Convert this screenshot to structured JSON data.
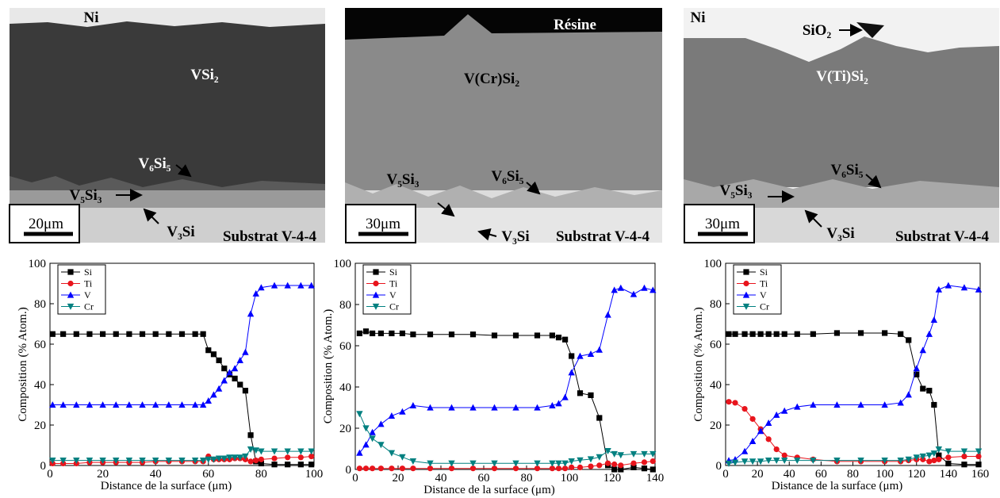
{
  "micrographs": [
    {
      "labels": [
        "Ni",
        "VSi₂",
        "V₆Si₅",
        "V₅Si₃",
        "V₃Si",
        "Substrat V-4-4"
      ],
      "scale_bar": "20μm"
    },
    {
      "labels": [
        "Résine",
        "V(Cr)Si₂",
        "V₅Si₃",
        "V₆Si₅",
        "V₃Si",
        "Substrat V-4-4"
      ],
      "scale_bar": "30μm"
    },
    {
      "labels": [
        "Ni",
        "SiO₂",
        "V(Ti)Si₂",
        "V₆Si₅",
        "V₅Si₃",
        "V₃Si",
        "Substrat V-4-4"
      ],
      "scale_bar": "30μm"
    }
  ],
  "chart_data": [
    {
      "type": "line",
      "x_label": "Distance de la surface (μm)",
      "y_label": "Composition (% Atom.)",
      "x": [
        1,
        5,
        10,
        15,
        20,
        25,
        30,
        35,
        40,
        45,
        50,
        55,
        58,
        60,
        62,
        64,
        66,
        68,
        70,
        72,
        74,
        76,
        78,
        80,
        85,
        90,
        95,
        99
      ],
      "series": [
        {
          "name": "Si",
          "color": "#000000",
          "marker": "square",
          "values": [
            65,
            65,
            65,
            65,
            65,
            65,
            65,
            65,
            65,
            65,
            65,
            65,
            65,
            57,
            55,
            52,
            48,
            45,
            43,
            40,
            37,
            15,
            2,
            1,
            0.5,
            0.5,
            0.5,
            0.5
          ]
        },
        {
          "name": "Ti",
          "color": "#e8141c",
          "marker": "circle",
          "values": [
            1,
            1,
            1,
            1.5,
            1.5,
            1.5,
            1.5,
            1.5,
            2,
            2,
            2,
            2,
            2,
            4.5,
            3,
            3,
            3,
            3,
            3.5,
            3.5,
            3,
            2,
            2.5,
            3,
            3.5,
            4,
            4,
            4.5
          ]
        },
        {
          "name": "V",
          "color": "#0000ff",
          "marker": "triangle-up",
          "values": [
            30,
            30,
            30,
            30,
            30,
            30,
            30,
            30,
            30,
            30,
            30,
            30,
            30,
            32,
            35,
            38,
            42,
            46,
            48,
            52,
            56,
            75,
            85,
            88,
            89,
            89,
            89,
            89
          ]
        },
        {
          "name": "Cr",
          "color": "#008080",
          "marker": "triangle-down",
          "values": [
            2.5,
            2.5,
            2.5,
            2.5,
            2.5,
            2.5,
            2.5,
            2.5,
            2.5,
            2.5,
            2.5,
            2.5,
            2.5,
            3,
            3,
            3.5,
            3.5,
            4,
            4,
            4,
            4.5,
            8,
            7.5,
            7,
            7,
            7,
            7,
            7
          ]
        }
      ],
      "xlim": [
        0,
        100
      ],
      "xticks": [
        0,
        20,
        40,
        60,
        80,
        100
      ],
      "ylim": [
        0,
        100
      ],
      "yticks": [
        0,
        20,
        40,
        60,
        80,
        100
      ],
      "legend": "upper left"
    },
    {
      "type": "line",
      "x_label": "Distance de la surface (μm)",
      "y_label": "Composition (% Atom.)",
      "x": [
        2,
        5,
        8,
        12,
        17,
        22,
        27,
        35,
        45,
        55,
        65,
        75,
        85,
        92,
        95,
        98,
        101,
        105,
        110,
        114,
        118,
        121,
        124,
        130,
        135,
        139
      ],
      "series": [
        {
          "name": "Si",
          "color": "#000000",
          "marker": "square",
          "values": [
            66,
            67,
            66,
            66,
            66,
            66,
            65.5,
            65.5,
            65.5,
            65.5,
            65,
            65,
            65,
            65,
            64,
            63,
            55,
            37,
            36,
            25,
            2,
            0,
            0,
            1,
            0.5,
            0
          ]
        },
        {
          "name": "Ti",
          "color": "#e8141c",
          "marker": "circle",
          "values": [
            0.5,
            0.5,
            0.5,
            0.5,
            0.5,
            0.5,
            0.5,
            0.5,
            0.5,
            0.5,
            0.5,
            0.5,
            0.5,
            0.5,
            0.5,
            0.5,
            1,
            1,
            1.5,
            2,
            3,
            2.5,
            2,
            3,
            3.5,
            4
          ]
        },
        {
          "name": "V",
          "color": "#0000ff",
          "marker": "triangle-up",
          "values": [
            8,
            12,
            18,
            22,
            26,
            28,
            31,
            30,
            30,
            30,
            30,
            30,
            30,
            31,
            32,
            35,
            47,
            55,
            56,
            58,
            75,
            87,
            88,
            85,
            88,
            87
          ]
        },
        {
          "name": "Cr",
          "color": "#008080",
          "marker": "triangle-down",
          "values": [
            27,
            20,
            15,
            12,
            8,
            6,
            4,
            3,
            3,
            3,
            3,
            3,
            3,
            3,
            3,
            3,
            4,
            4.5,
            5,
            6,
            9,
            7.5,
            7,
            7.5,
            7.5,
            7.5
          ]
        }
      ],
      "xlim": [
        0,
        140
      ],
      "xticks": [
        0,
        20,
        40,
        60,
        80,
        100,
        120,
        140
      ],
      "ylim": [
        0,
        100
      ],
      "yticks": [
        0,
        20,
        40,
        60,
        80,
        100
      ],
      "legend": "upper left"
    },
    {
      "type": "line",
      "x_label": "Distance de la surface (μm)",
      "y_label": "Composition (% Atom.)",
      "x": [
        2,
        6,
        12,
        17,
        22,
        27,
        32,
        37,
        45,
        55,
        70,
        85,
        100,
        110,
        115,
        120,
        124,
        128,
        131,
        134,
        140,
        150,
        159
      ],
      "series": [
        {
          "name": "Si",
          "color": "#000000",
          "marker": "square",
          "values": [
            65,
            65,
            65,
            65,
            65,
            65,
            65,
            65,
            65,
            65,
            65.5,
            65.5,
            65.5,
            65,
            62,
            45,
            38,
            37,
            30,
            5,
            1,
            0.5,
            0.5
          ]
        },
        {
          "name": "Ti",
          "color": "#e8141c",
          "marker": "circle",
          "values": [
            31.5,
            31,
            28,
            23,
            18,
            13,
            8,
            5,
            4,
            3,
            2,
            2,
            2,
            2,
            2.5,
            3,
            3,
            2,
            2.5,
            3,
            4,
            4.5,
            4.5
          ]
        },
        {
          "name": "V",
          "color": "#0000ff",
          "marker": "triangle-up",
          "values": [
            2.5,
            3,
            7,
            12,
            17,
            21,
            25,
            27,
            29,
            30,
            30,
            30,
            30,
            31,
            35,
            48,
            57,
            65,
            72,
            87,
            89,
            88,
            87
          ]
        },
        {
          "name": "Cr",
          "color": "#008080",
          "marker": "triangle-down",
          "values": [
            1,
            1.5,
            2,
            2,
            2,
            2.5,
            2.5,
            2.5,
            2.5,
            2.5,
            2.5,
            2.5,
            2.5,
            2.5,
            3,
            4,
            4.5,
            5,
            6,
            8,
            7,
            7,
            7
          ]
        }
      ],
      "xlim": [
        0,
        160
      ],
      "xticks": [
        0,
        20,
        40,
        60,
        80,
        100,
        120,
        140,
        160
      ],
      "ylim": [
        0,
        100
      ],
      "yticks": [
        0,
        20,
        40,
        60,
        80,
        100
      ],
      "legend": "upper left"
    }
  ]
}
